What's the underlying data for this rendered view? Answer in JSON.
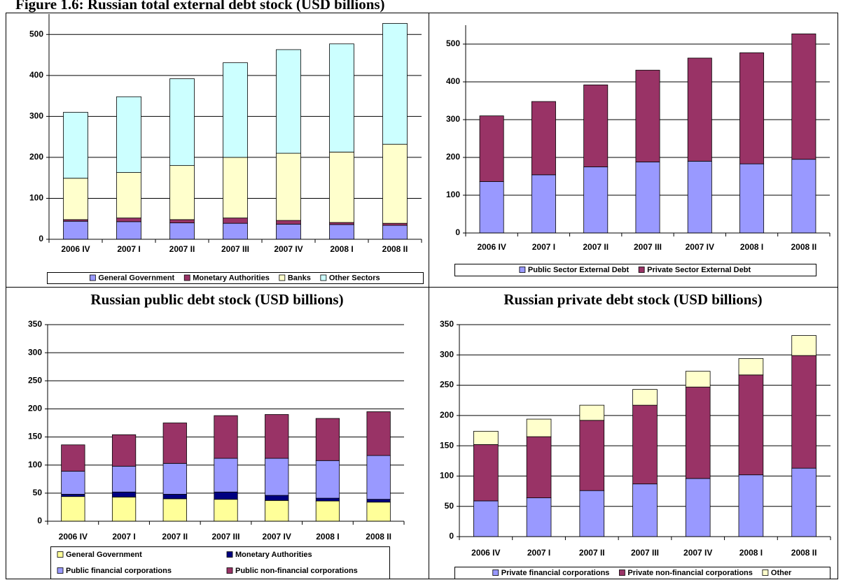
{
  "chart_data": [
    {
      "type": "bar",
      "stacked": true,
      "title": "Figure 1.6: Russian total external debt stock (USD billions)",
      "categories": [
        "2006 IV",
        "2007 I",
        "2007 II",
        "2007 III",
        "2007 IV",
        "2008 I",
        "2008 II"
      ],
      "series": [
        {
          "name": "General Government",
          "color": "#9999ff",
          "values": [
            44,
            43,
            40,
            39,
            37,
            36,
            34
          ]
        },
        {
          "name": "Monetary Authorities",
          "color": "#993366",
          "values": [
            4,
            9,
            8,
            13,
            9,
            5,
            5
          ]
        },
        {
          "name": "Banks",
          "color": "#ffffcc",
          "values": [
            101,
            111,
            132,
            148,
            164,
            172,
            193
          ]
        },
        {
          "name": "Other Sectors",
          "color": "#ccffff",
          "values": [
            161,
            185,
            212,
            231,
            253,
            264,
            295
          ]
        }
      ],
      "ylim": [
        0,
        550
      ],
      "yticks": [
        0,
        100,
        200,
        300,
        400,
        500
      ],
      "grid": true,
      "legend": "bottom"
    },
    {
      "type": "bar",
      "stacked": true,
      "categories": [
        "2006 IV",
        "2007 I",
        "2007 II",
        "2007 III",
        "2007 IV",
        "2008 I",
        "2008 II"
      ],
      "series": [
        {
          "name": "Public Sector External Debt",
          "color": "#9999ff",
          "values": [
            136,
            154,
            175,
            188,
            190,
            183,
            195
          ]
        },
        {
          "name": "Private Sector External Debt",
          "color": "#993366",
          "values": [
            174,
            194,
            217,
            243,
            273,
            294,
            332
          ]
        }
      ],
      "ylim": [
        0,
        550
      ],
      "yticks": [
        0,
        100,
        200,
        300,
        400,
        500
      ],
      "grid": true,
      "legend": "bottom"
    },
    {
      "type": "bar",
      "stacked": true,
      "title": "Russian public debt stock (USD billions)",
      "categories": [
        "2006 IV",
        "2007 I",
        "2007 II",
        "2007 III",
        "2007 IV",
        "2008 I",
        "2008 II"
      ],
      "series": [
        {
          "name": "General Government",
          "color": "#ffff99",
          "values": [
            44,
            43,
            40,
            39,
            37,
            36,
            34
          ]
        },
        {
          "name": "Monetary Authorities",
          "color": "#000080",
          "values": [
            4,
            9,
            8,
            13,
            9,
            5,
            5
          ]
        },
        {
          "name": "Public financial corporations",
          "color": "#9999ff",
          "values": [
            41,
            46,
            55,
            60,
            66,
            67,
            78
          ]
        },
        {
          "name": "Public non-financial corporations",
          "color": "#993366",
          "values": [
            47,
            56,
            72,
            76,
            78,
            75,
            78
          ]
        }
      ],
      "ylim": [
        0,
        350
      ],
      "yticks": [
        0,
        50,
        100,
        150,
        200,
        250,
        300,
        350
      ],
      "grid": true,
      "legend": "bottom"
    },
    {
      "type": "bar",
      "stacked": true,
      "title": "Russian private debt stock (USD billions)",
      "categories": [
        "2006 IV",
        "2007 I",
        "2007 II",
        "2007 III",
        "2007 IV",
        "2008 I",
        "2008 II"
      ],
      "series": [
        {
          "name": "Private financial corporations",
          "color": "#9999ff",
          "values": [
            59,
            64,
            76,
            87,
            96,
            102,
            113
          ]
        },
        {
          "name": "Private non-financial corporations",
          "color": "#993366",
          "values": [
            93,
            101,
            116,
            130,
            151,
            165,
            186
          ]
        },
        {
          "name": "Other",
          "color": "#ffffcc",
          "values": [
            22,
            29,
            25,
            26,
            26,
            27,
            33
          ]
        }
      ],
      "ylim": [
        0,
        350
      ],
      "yticks": [
        0,
        50,
        100,
        150,
        200,
        250,
        300,
        350
      ],
      "grid": true,
      "legend": "bottom"
    }
  ]
}
